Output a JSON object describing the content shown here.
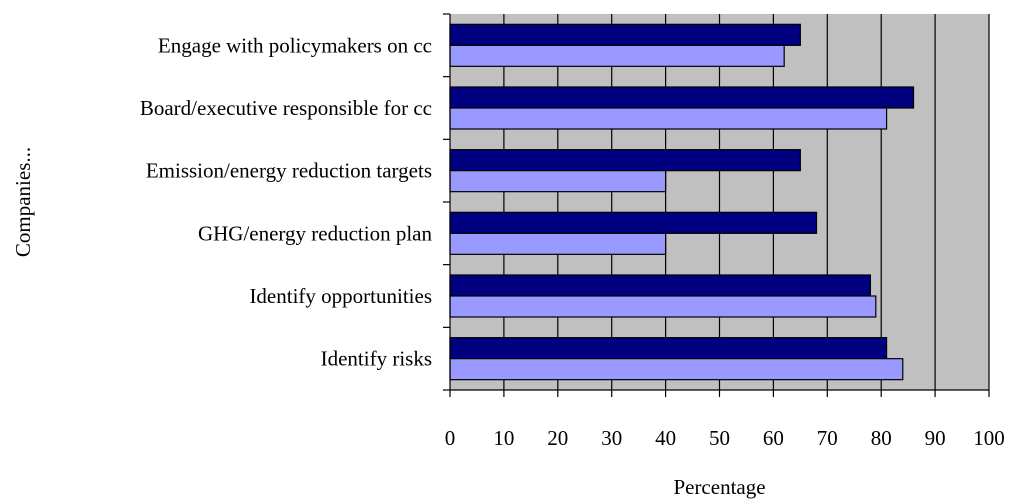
{
  "chart_data": {
    "type": "bar",
    "orientation": "horizontal",
    "categories": [
      "Engage with policymakers on cc",
      "Board/executive responsible for cc",
      "Emission/energy reduction targets",
      "GHG/energy reduction plan",
      "Identify opportunities",
      "Identify risks"
    ],
    "series": [
      {
        "values": [
          65,
          86,
          65,
          68,
          78,
          81
        ]
      },
      {
        "values": [
          62,
          81,
          40,
          40,
          79,
          84
        ]
      }
    ],
    "xlabel": "Percentage",
    "ylabel": "Companies...",
    "xlim": [
      0,
      100
    ],
    "xticks": [
      "0",
      "10",
      "20",
      "30",
      "40",
      "50",
      "60",
      "70",
      "80",
      "90",
      "100"
    ],
    "grid": "vertical",
    "legend": "none",
    "colors": {
      "plot_background": "#c0c0c0",
      "series_1": "#000080",
      "series_2": "#9999ff",
      "bar_outline": "#000000",
      "gridline": "#000000"
    }
  }
}
